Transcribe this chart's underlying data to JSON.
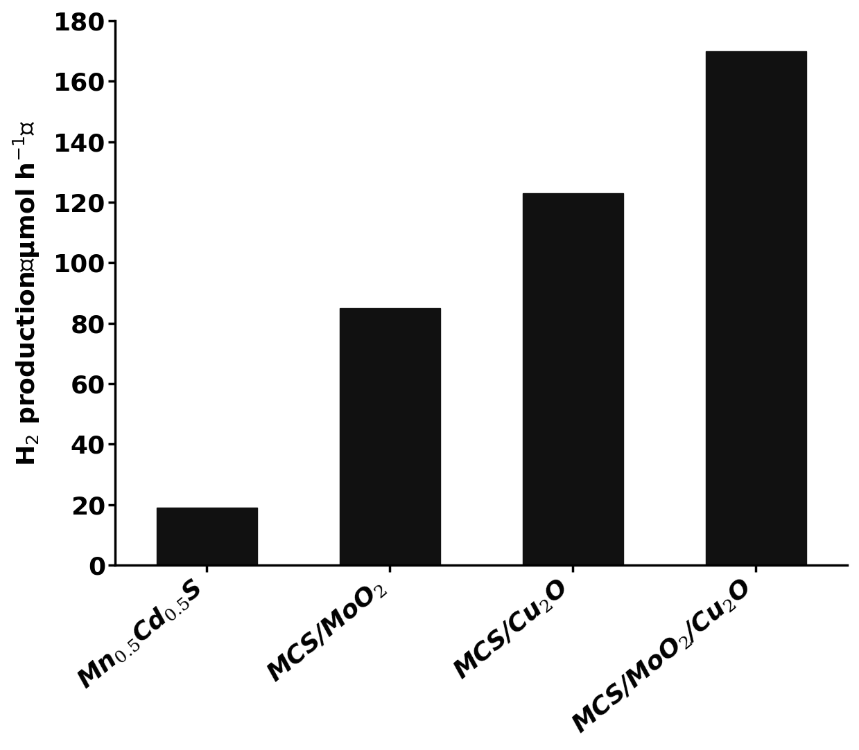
{
  "categories_raw": [
    "Mn$_{0.5}$Cd$_{0.5}$S",
    "MCS/MoO$_2$",
    "MCS/Cu$_2$O",
    "MCS/MoO$_2$/Cu$_2$O"
  ],
  "values": [
    19,
    85,
    123,
    170
  ],
  "bar_color": "#111111",
  "ylim": [
    0,
    180
  ],
  "yticks": [
    0,
    20,
    40,
    60,
    80,
    100,
    120,
    140,
    160,
    180
  ],
  "background_color": "#ffffff",
  "bar_width": 0.55,
  "tick_fontsize": 26,
  "ylabel_fontsize": 26,
  "xlabel_rotation": 40,
  "spine_linewidth": 2.5
}
